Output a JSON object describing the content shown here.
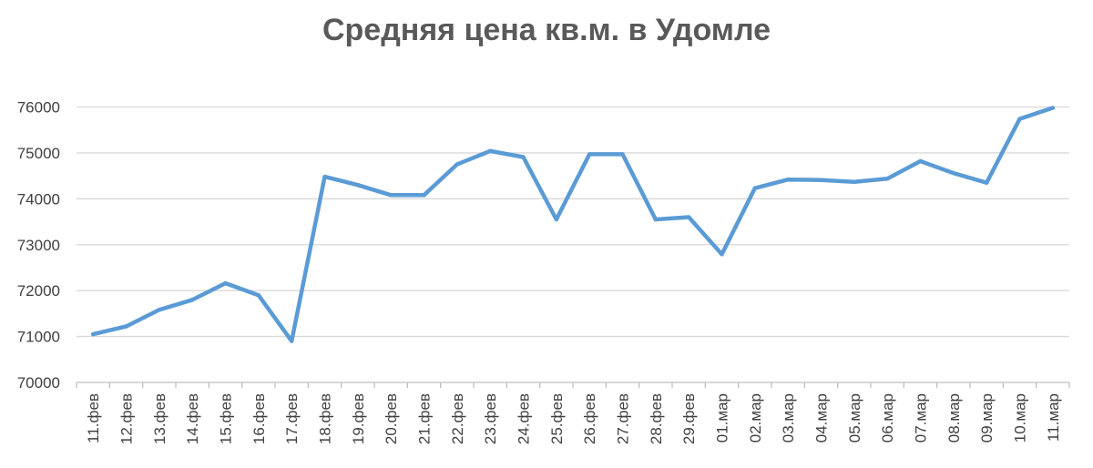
{
  "chart_data": {
    "type": "line",
    "title": "Средняя цена кв.м. в Удомле",
    "xlabel": "",
    "ylabel": "",
    "ylim": [
      70000,
      76000
    ],
    "ytick_step": 1000,
    "grid": true,
    "legend": "none",
    "color": "#5b9bd5",
    "categories": [
      "11.фев",
      "12.фев",
      "13.фев",
      "14.фев",
      "15.фев",
      "16.фев",
      "17.фев",
      "18.фев",
      "19.фев",
      "20.фев",
      "21.фев",
      "22.фев",
      "23.фев",
      "24.фев",
      "25.фев",
      "26.фев",
      "27.фев",
      "28.фев",
      "29.фев",
      "01.мар",
      "02.мар",
      "03.мар",
      "04.мар",
      "05.мар",
      "06.мар",
      "07.мар",
      "08.мар",
      "09.мар",
      "10.мар",
      "11.мар"
    ],
    "series": [
      {
        "values": [
          71050,
          71220,
          71580,
          71800,
          72160,
          71900,
          70900,
          74480,
          74300,
          74080,
          74080,
          74750,
          75040,
          74910,
          73550,
          74970,
          74970,
          73550,
          73600,
          72790,
          74230,
          74420,
          74410,
          74370,
          74440,
          74820,
          74560,
          74350,
          75740,
          75980
        ]
      }
    ]
  }
}
